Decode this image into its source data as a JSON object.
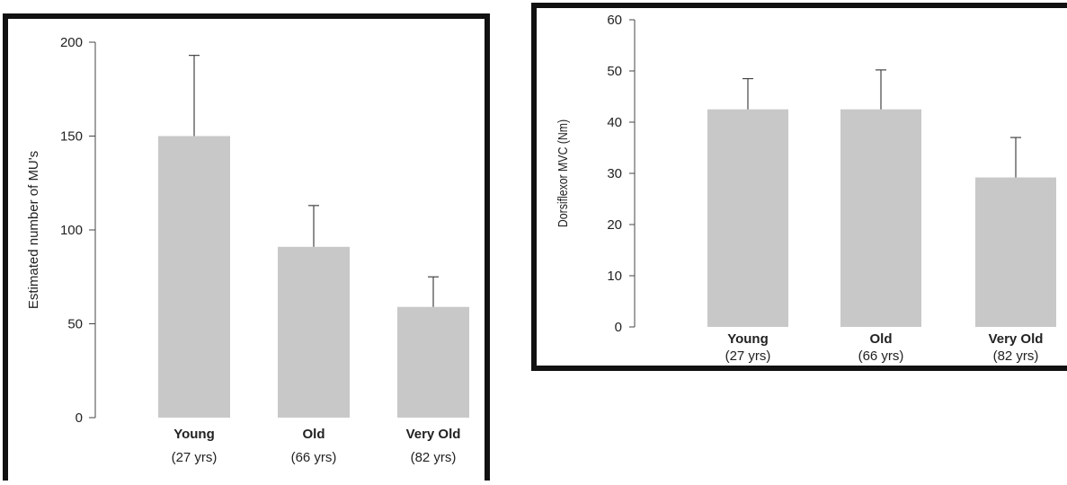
{
  "chart_data": [
    {
      "type": "bar",
      "categories": [
        "Young",
        "Old",
        "Very Old"
      ],
      "category_sublabels": [
        "(27 yrs)",
        "(66 yrs)",
        "(82 yrs)"
      ],
      "values": [
        150,
        91,
        59
      ],
      "errors": [
        43,
        22,
        16
      ],
      "ylabel": "Estimated number of MU's",
      "xlabel": "",
      "ylim": [
        0,
        200
      ],
      "yticks": [
        0,
        50,
        100,
        150,
        200
      ],
      "bar_color": "#c8c8c8",
      "grid": false
    },
    {
      "type": "bar",
      "categories": [
        "Young",
        "Old",
        "Very Old"
      ],
      "category_sublabels": [
        "(27 yrs)",
        "(66 yrs)",
        "(82 yrs)"
      ],
      "values": [
        42.5,
        42.5,
        29.2
      ],
      "errors": [
        6,
        7.7,
        7.8
      ],
      "ylabel": "Dorsiflexor MVC (Nm)",
      "xlabel": "",
      "ylim": [
        0,
        60
      ],
      "yticks": [
        0,
        10,
        20,
        30,
        40,
        50,
        60
      ],
      "bar_color": "#c8c8c8",
      "grid": false
    }
  ]
}
